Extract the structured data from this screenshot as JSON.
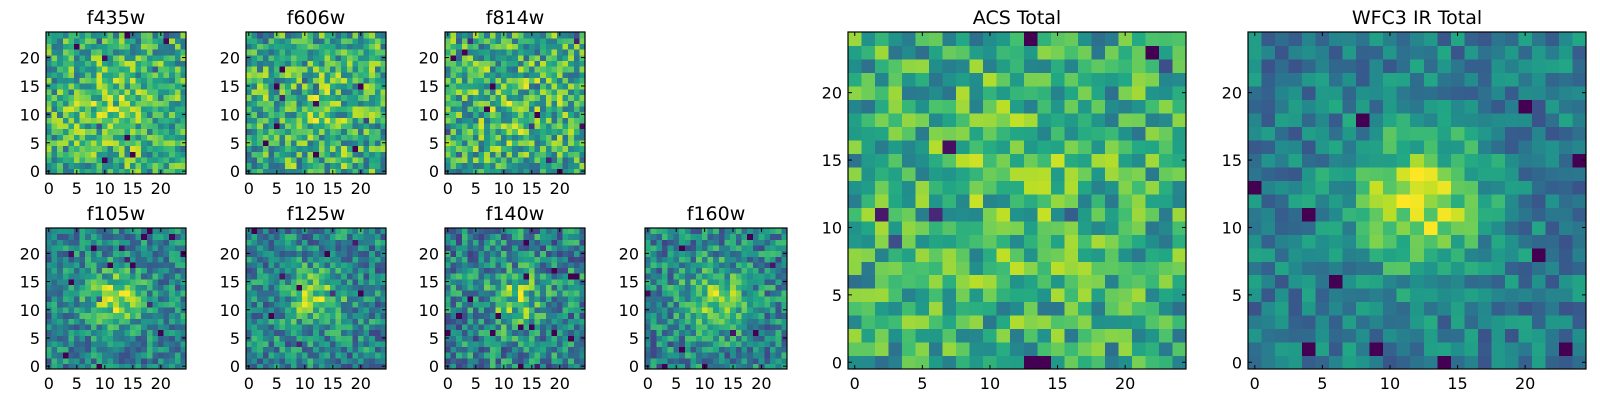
{
  "figure": {
    "description_free": true
  },
  "chart_data": [
    {
      "type": "heatmap",
      "title": "f435w",
      "grid_size": 25,
      "xlim": [
        -0.5,
        24.5
      ],
      "ylim": [
        -0.5,
        24.5
      ],
      "xticks": [
        0,
        5,
        10,
        15,
        20
      ],
      "yticks": [
        0,
        5,
        10,
        15,
        20
      ],
      "colormap": "viridis",
      "pattern": {
        "seed": 11,
        "peak": 0.15,
        "sigma": 6,
        "noise": 0.55,
        "base": 0.6,
        "center": [
          12,
          11
        ]
      }
    },
    {
      "type": "heatmap",
      "title": "f606w",
      "grid_size": 25,
      "xlim": [
        -0.5,
        24.5
      ],
      "ylim": [
        -0.5,
        24.5
      ],
      "xticks": [
        0,
        5,
        10,
        15,
        20
      ],
      "yticks": [
        0,
        5,
        10,
        15,
        20
      ],
      "colormap": "viridis",
      "pattern": {
        "seed": 23,
        "peak": 0.1,
        "sigma": 6,
        "noise": 0.6,
        "base": 0.6,
        "center": [
          12,
          11
        ]
      }
    },
    {
      "type": "heatmap",
      "title": "f814w",
      "grid_size": 25,
      "xlim": [
        -0.5,
        24.5
      ],
      "ylim": [
        -0.5,
        24.5
      ],
      "xticks": [
        0,
        5,
        10,
        15,
        20
      ],
      "yticks": [
        0,
        5,
        10,
        15,
        20
      ],
      "colormap": "viridis",
      "pattern": {
        "seed": 37,
        "peak": 0.1,
        "sigma": 6,
        "noise": 0.6,
        "base": 0.6,
        "center": [
          12,
          11
        ]
      }
    },
    {
      "type": "heatmap",
      "title": "f105w",
      "grid_size": 25,
      "xlim": [
        -0.5,
        24.5
      ],
      "ylim": [
        -0.5,
        24.5
      ],
      "xticks": [
        0,
        5,
        10,
        15,
        20
      ],
      "yticks": [
        0,
        5,
        10,
        15,
        20
      ],
      "colormap": "viridis",
      "pattern": {
        "seed": 41,
        "peak": 0.4,
        "sigma": 3.5,
        "noise": 0.45,
        "base": 0.45,
        "center": [
          12,
          12
        ]
      }
    },
    {
      "type": "heatmap",
      "title": "f125w",
      "grid_size": 25,
      "xlim": [
        -0.5,
        24.5
      ],
      "ylim": [
        -0.5,
        24.5
      ],
      "xticks": [
        0,
        5,
        10,
        15,
        20
      ],
      "yticks": [
        0,
        5,
        10,
        15,
        20
      ],
      "colormap": "viridis",
      "pattern": {
        "seed": 53,
        "peak": 0.35,
        "sigma": 3.5,
        "noise": 0.5,
        "base": 0.45,
        "center": [
          12,
          12
        ]
      }
    },
    {
      "type": "heatmap",
      "title": "f140w",
      "grid_size": 25,
      "xlim": [
        -0.5,
        24.5
      ],
      "ylim": [
        -0.5,
        24.5
      ],
      "xticks": [
        0,
        5,
        10,
        15,
        20
      ],
      "yticks": [
        0,
        5,
        10,
        15,
        20
      ],
      "colormap": "viridis",
      "pattern": {
        "seed": 67,
        "peak": 0.3,
        "sigma": 3.5,
        "noise": 0.55,
        "base": 0.45,
        "center": [
          12,
          12
        ]
      }
    },
    {
      "type": "heatmap",
      "title": "f160w",
      "grid_size": 25,
      "xlim": [
        -0.5,
        24.5
      ],
      "ylim": [
        -0.5,
        24.5
      ],
      "xticks": [
        0,
        5,
        10,
        15,
        20
      ],
      "yticks": [
        0,
        5,
        10,
        15,
        20
      ],
      "colormap": "viridis",
      "pattern": {
        "seed": 79,
        "peak": 0.35,
        "sigma": 4,
        "noise": 0.5,
        "base": 0.45,
        "center": [
          12,
          12
        ]
      }
    },
    {
      "type": "heatmap",
      "title": "ACS Total",
      "grid_size": 25,
      "xlim": [
        -0.5,
        24.5
      ],
      "ylim": [
        -0.5,
        24.5
      ],
      "xticks": [
        0,
        5,
        10,
        15,
        20
      ],
      "yticks": [
        0,
        5,
        10,
        15,
        20
      ],
      "colormap": "viridis",
      "pattern": {
        "seed": 97,
        "peak": 0.1,
        "sigma": 6,
        "noise": 0.5,
        "base": 0.6,
        "center": [
          12,
          12
        ]
      }
    },
    {
      "type": "heatmap",
      "title": "WFC3 IR Total",
      "grid_size": 25,
      "xlim": [
        -0.5,
        24.5
      ],
      "ylim": [
        -0.5,
        24.5
      ],
      "xticks": [
        0,
        5,
        10,
        15,
        20
      ],
      "yticks": [
        0,
        5,
        10,
        15,
        20
      ],
      "colormap": "viridis",
      "pattern": {
        "seed": 131,
        "peak": 0.5,
        "sigma": 3.5,
        "noise": 0.35,
        "base": 0.42,
        "center": [
          12,
          12
        ]
      }
    }
  ]
}
